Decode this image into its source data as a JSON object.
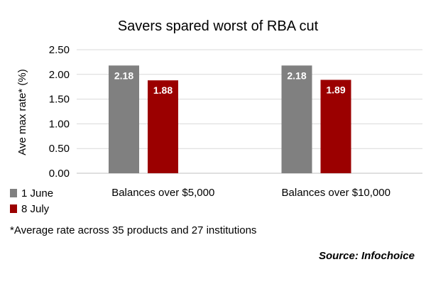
{
  "chart_data": {
    "type": "bar",
    "title": "Savers spared worst of RBA cut",
    "ylabel": "Ave max rate* (%)",
    "xlabel": "",
    "categories": [
      "Balances over $5,000",
      "Balances over $10,000"
    ],
    "series": [
      {
        "name": "1 June",
        "values": [
          2.18,
          2.18
        ],
        "color": "#808080"
      },
      {
        "name": "8 July",
        "values": [
          1.88,
          1.89
        ],
        "color": "#9b0000"
      }
    ],
    "ylim": [
      0,
      2.5
    ],
    "yticks": [
      "0.00",
      "0.50",
      "1.00",
      "1.50",
      "2.00",
      "2.50"
    ],
    "grid": true,
    "legend_position": "bottom-left",
    "data_labels": [
      "2.18",
      "1.88",
      "2.18",
      "1.89"
    ]
  },
  "footnote": "*Average rate across 35 products and 27 institutions",
  "source": "Source: Infochoice"
}
